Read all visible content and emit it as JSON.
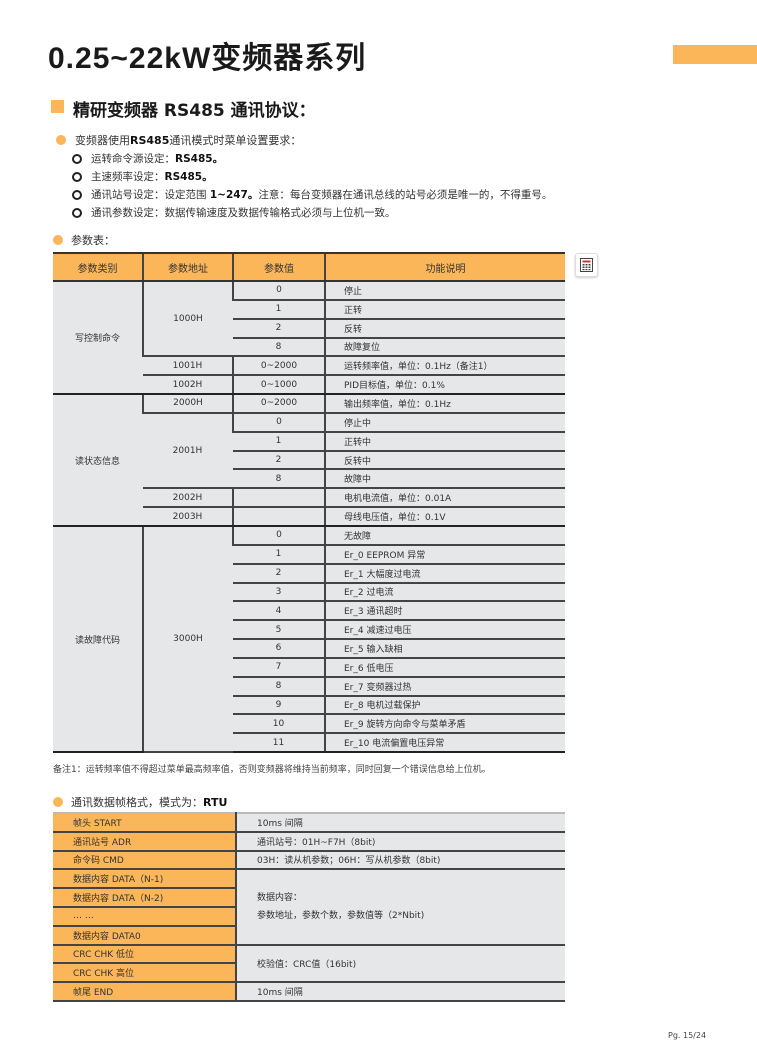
{
  "header": {
    "title": "0.25~22kW变频器系列",
    "accent": "#fbb65a"
  },
  "section": {
    "title": "精研变频器 RS485 通讯协议："
  },
  "requirements": {
    "heading_pre": "变频器使用",
    "heading_bold": "RS485",
    "heading_post": "通讯模式时菜单设置要求：",
    "items": [
      {
        "label": "运转命令源设定：",
        "value": "RS485。",
        "rest": ""
      },
      {
        "label": "主速频率设定：",
        "value": "RS485。",
        "rest": ""
      },
      {
        "label": "通讯站号设定：设定范围 ",
        "value": "1~247。",
        "rest": "注意：每台变频器在通讯总线的站号必须是唯一的，不得重号。"
      },
      {
        "label": "通讯参数设定：数据传输速度及数据传输格式必须与上位机一致。",
        "value": "",
        "rest": ""
      }
    ]
  },
  "param_table": {
    "heading": "参数表：",
    "columns": [
      "参数类别",
      "参数地址",
      "参数值",
      "功能说明"
    ],
    "groups": [
      {
        "category": "写控制命令",
        "addresses": [
          {
            "addr": "1000H",
            "rows": [
              [
                "0",
                "停止"
              ],
              [
                "1",
                "正转"
              ],
              [
                "2",
                "反转"
              ],
              [
                "8",
                "故障复位"
              ]
            ]
          },
          {
            "addr": "1001H",
            "rows": [
              [
                "0~2000",
                "运转频率值，单位：0.1Hz（备注1）"
              ]
            ]
          },
          {
            "addr": "1002H",
            "rows": [
              [
                "0~1000",
                "PID目标值，单位：0.1%"
              ]
            ]
          }
        ]
      },
      {
        "category": "读状态信息",
        "addresses": [
          {
            "addr": "2000H",
            "rows": [
              [
                "0~2000",
                "输出频率值，单位：0.1Hz"
              ]
            ]
          },
          {
            "addr": "2001H",
            "rows": [
              [
                "0",
                "停止中"
              ],
              [
                "1",
                "正转中"
              ],
              [
                "2",
                "反转中"
              ],
              [
                "8",
                "故障中"
              ]
            ]
          },
          {
            "addr": "2002H",
            "rows": [
              [
                "",
                "电机电流值，单位：0.01A"
              ]
            ]
          },
          {
            "addr": "2003H",
            "rows": [
              [
                "",
                "母线电压值，单位：0.1V"
              ]
            ]
          }
        ]
      },
      {
        "category": "读故障代码",
        "addresses": [
          {
            "addr": "3000H",
            "rows": [
              [
                "0",
                "无故障"
              ],
              [
                "1",
                "Er_0 EEPROM 异常"
              ],
              [
                "2",
                "Er_1 大幅度过电流"
              ],
              [
                "3",
                "Er_2 过电流"
              ],
              [
                "4",
                "Er_3 通讯超时"
              ],
              [
                "5",
                "Er_4 减速过电压"
              ],
              [
                "6",
                "Er_5 输入缺相"
              ],
              [
                "7",
                "Er_6 低电压"
              ],
              [
                "8",
                "Er_7 变频器过热"
              ],
              [
                "9",
                "Er_8 电机过载保护"
              ],
              [
                "10",
                "Er_9 旋转方向命令与菜单矛盾"
              ],
              [
                "11",
                "Er_10 电流偏置电压异常"
              ]
            ]
          }
        ]
      }
    ]
  },
  "note": "备注1：运转频率值不得超过菜单最高频率值，否则变频器将维持当前频率，同时回复一个错误信息给上位机。",
  "frame_table": {
    "heading_pre": "通讯数据帧格式，模式为：",
    "heading_bold": "RTU",
    "keys": [
      "帧头 START",
      "通讯站号 ADR",
      "命令码 CMD",
      "数据内容 DATA（N-1)",
      "数据内容 DATA（N-2)",
      "… …",
      "数据内容 DATA0",
      "CRC CHK 低位",
      "CRC CHK 高位",
      "帧尾 END"
    ],
    "values": {
      "start": "10ms 间隔",
      "adr": "通讯站号：01H~F7H（8bit)",
      "cmd": "03H：读从机参数；06H：写从机参数（8bit)",
      "data_line1": "数据内容：",
      "data_line2": "参数地址，参数个数，参数值等（2*Nbit)",
      "crc": "校验值：CRC值（16bit)",
      "end": "10ms 间隔"
    }
  },
  "overlay": {
    "icon": "calculator-icon"
  },
  "footer": {
    "page": "Pg. 15/24"
  }
}
